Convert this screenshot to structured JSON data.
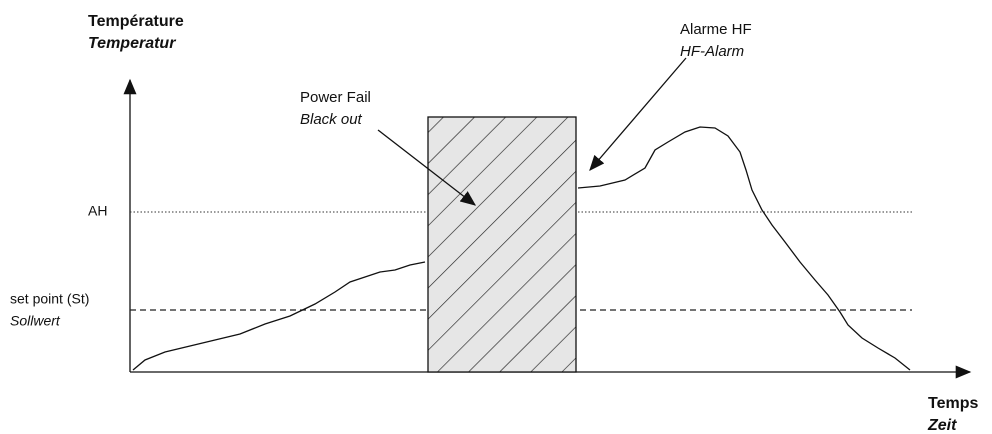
{
  "axis": {
    "y_label": "Température",
    "y_label_de": "Temperatur",
    "x_label": "Temps",
    "x_label_de": "Zeit"
  },
  "levels": {
    "alarm_high": "AH",
    "set_point": "set point (St)",
    "set_point_de": "Sollwert"
  },
  "annotations": {
    "power_fail": "Power Fail",
    "power_fail_de": "Black out",
    "alarm": "Alarme HF",
    "alarm_de": "HF-Alarm"
  }
}
